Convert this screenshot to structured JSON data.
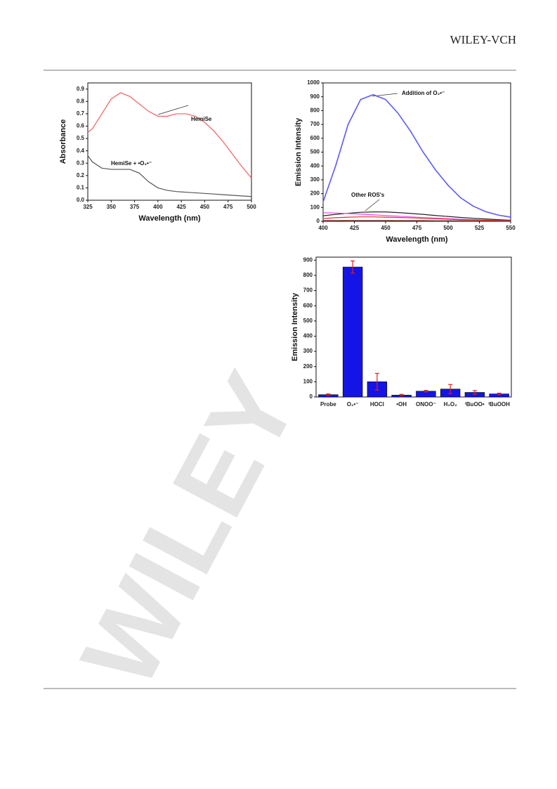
{
  "header": {
    "publisher": "WILEY-VCH"
  },
  "watermark": "WILEY",
  "chart_data": [
    {
      "type": "line",
      "xlabel": "Wavelength (nm)",
      "ylabel": "Absorbance",
      "xlim": [
        325,
        500
      ],
      "xticks": [
        325,
        350,
        375,
        400,
        425,
        450,
        475,
        500
      ],
      "ylim": [
        0,
        0.95
      ],
      "yticks": [
        {
          "value": 0,
          "label": "0.0"
        },
        0.1,
        0.2,
        0.3,
        0.4,
        0.5,
        0.6,
        0.7,
        0.8,
        0.9
      ],
      "x": [
        325,
        330,
        340,
        350,
        360,
        370,
        380,
        390,
        400,
        410,
        420,
        430,
        440,
        450,
        460,
        470,
        480,
        490,
        500
      ],
      "series": [
        {
          "name": "HemiSe",
          "color": "#f06060",
          "values": [
            0.55,
            0.58,
            0.7,
            0.82,
            0.87,
            0.84,
            0.78,
            0.72,
            0.68,
            0.68,
            0.7,
            0.7,
            0.68,
            0.63,
            0.56,
            0.47,
            0.37,
            0.27,
            0.18
          ]
        },
        {
          "name": "HemiSe + •O₂•⁻",
          "color": "#555555",
          "values": [
            0.36,
            0.31,
            0.26,
            0.25,
            0.25,
            0.25,
            0.22,
            0.15,
            0.1,
            0.08,
            0.07,
            0.065,
            0.06,
            0.055,
            0.05,
            0.045,
            0.04,
            0.035,
            0.03
          ]
        }
      ]
    },
    {
      "type": "line",
      "xlabel": "Wavelength (nm)",
      "ylabel": "Emission Intensity",
      "xlim": [
        400,
        550
      ],
      "xticks": [
        400,
        425,
        450,
        475,
        500,
        525,
        550
      ],
      "ylim": [
        0,
        1000
      ],
      "yticks": [
        0,
        100,
        200,
        300,
        400,
        500,
        600,
        700,
        800,
        900,
        1000
      ],
      "x": [
        400,
        410,
        420,
        430,
        440,
        450,
        460,
        470,
        480,
        490,
        500,
        510,
        520,
        530,
        540,
        550
      ],
      "annotations": [
        "Addition of O₂•⁻",
        "Other ROS's"
      ],
      "series": [
        {
          "color": "#5a5aff",
          "values": [
            140,
            400,
            700,
            880,
            915,
            880,
            780,
            650,
            500,
            370,
            260,
            170,
            110,
            70,
            45,
            30
          ]
        },
        {
          "color": "#222222",
          "values": [
            40,
            50,
            58,
            65,
            68,
            68,
            63,
            57,
            50,
            42,
            35,
            28,
            22,
            17,
            12,
            8
          ]
        },
        {
          "color": "#ff40ff",
          "values": [
            62,
            60,
            56,
            52,
            47,
            42,
            37,
            32,
            27,
            23,
            19,
            15,
            12,
            9,
            7,
            5
          ]
        },
        {
          "color": "#e03030",
          "values": [
            20,
            26,
            30,
            32,
            32,
            30,
            28,
            25,
            22,
            19,
            15,
            12,
            10,
            8,
            6,
            5
          ]
        },
        {
          "color": "#803020",
          "values": [
            5,
            5,
            6,
            6,
            6,
            6,
            5,
            5,
            5,
            4,
            4,
            4,
            3,
            3,
            3,
            3
          ]
        }
      ]
    },
    {
      "type": "bar",
      "ylabel": "Emission Intensity",
      "ylim": [
        0,
        920
      ],
      "yticks": [
        0,
        100,
        200,
        300,
        400,
        500,
        600,
        700,
        800,
        900
      ],
      "categories": [
        "Probe",
        "O₂•⁻",
        "HOCl",
        "•OH",
        "ONOO⁻",
        "H₂O₂",
        "ᵗBuOO•",
        "ᵗBuOOH"
      ],
      "values": [
        15,
        855,
        100,
        12,
        38,
        52,
        30,
        20
      ],
      "errors": [
        5,
        40,
        55,
        5,
        5,
        30,
        12,
        5
      ],
      "color": "#1414e6",
      "error_color": "#e02020"
    }
  ]
}
